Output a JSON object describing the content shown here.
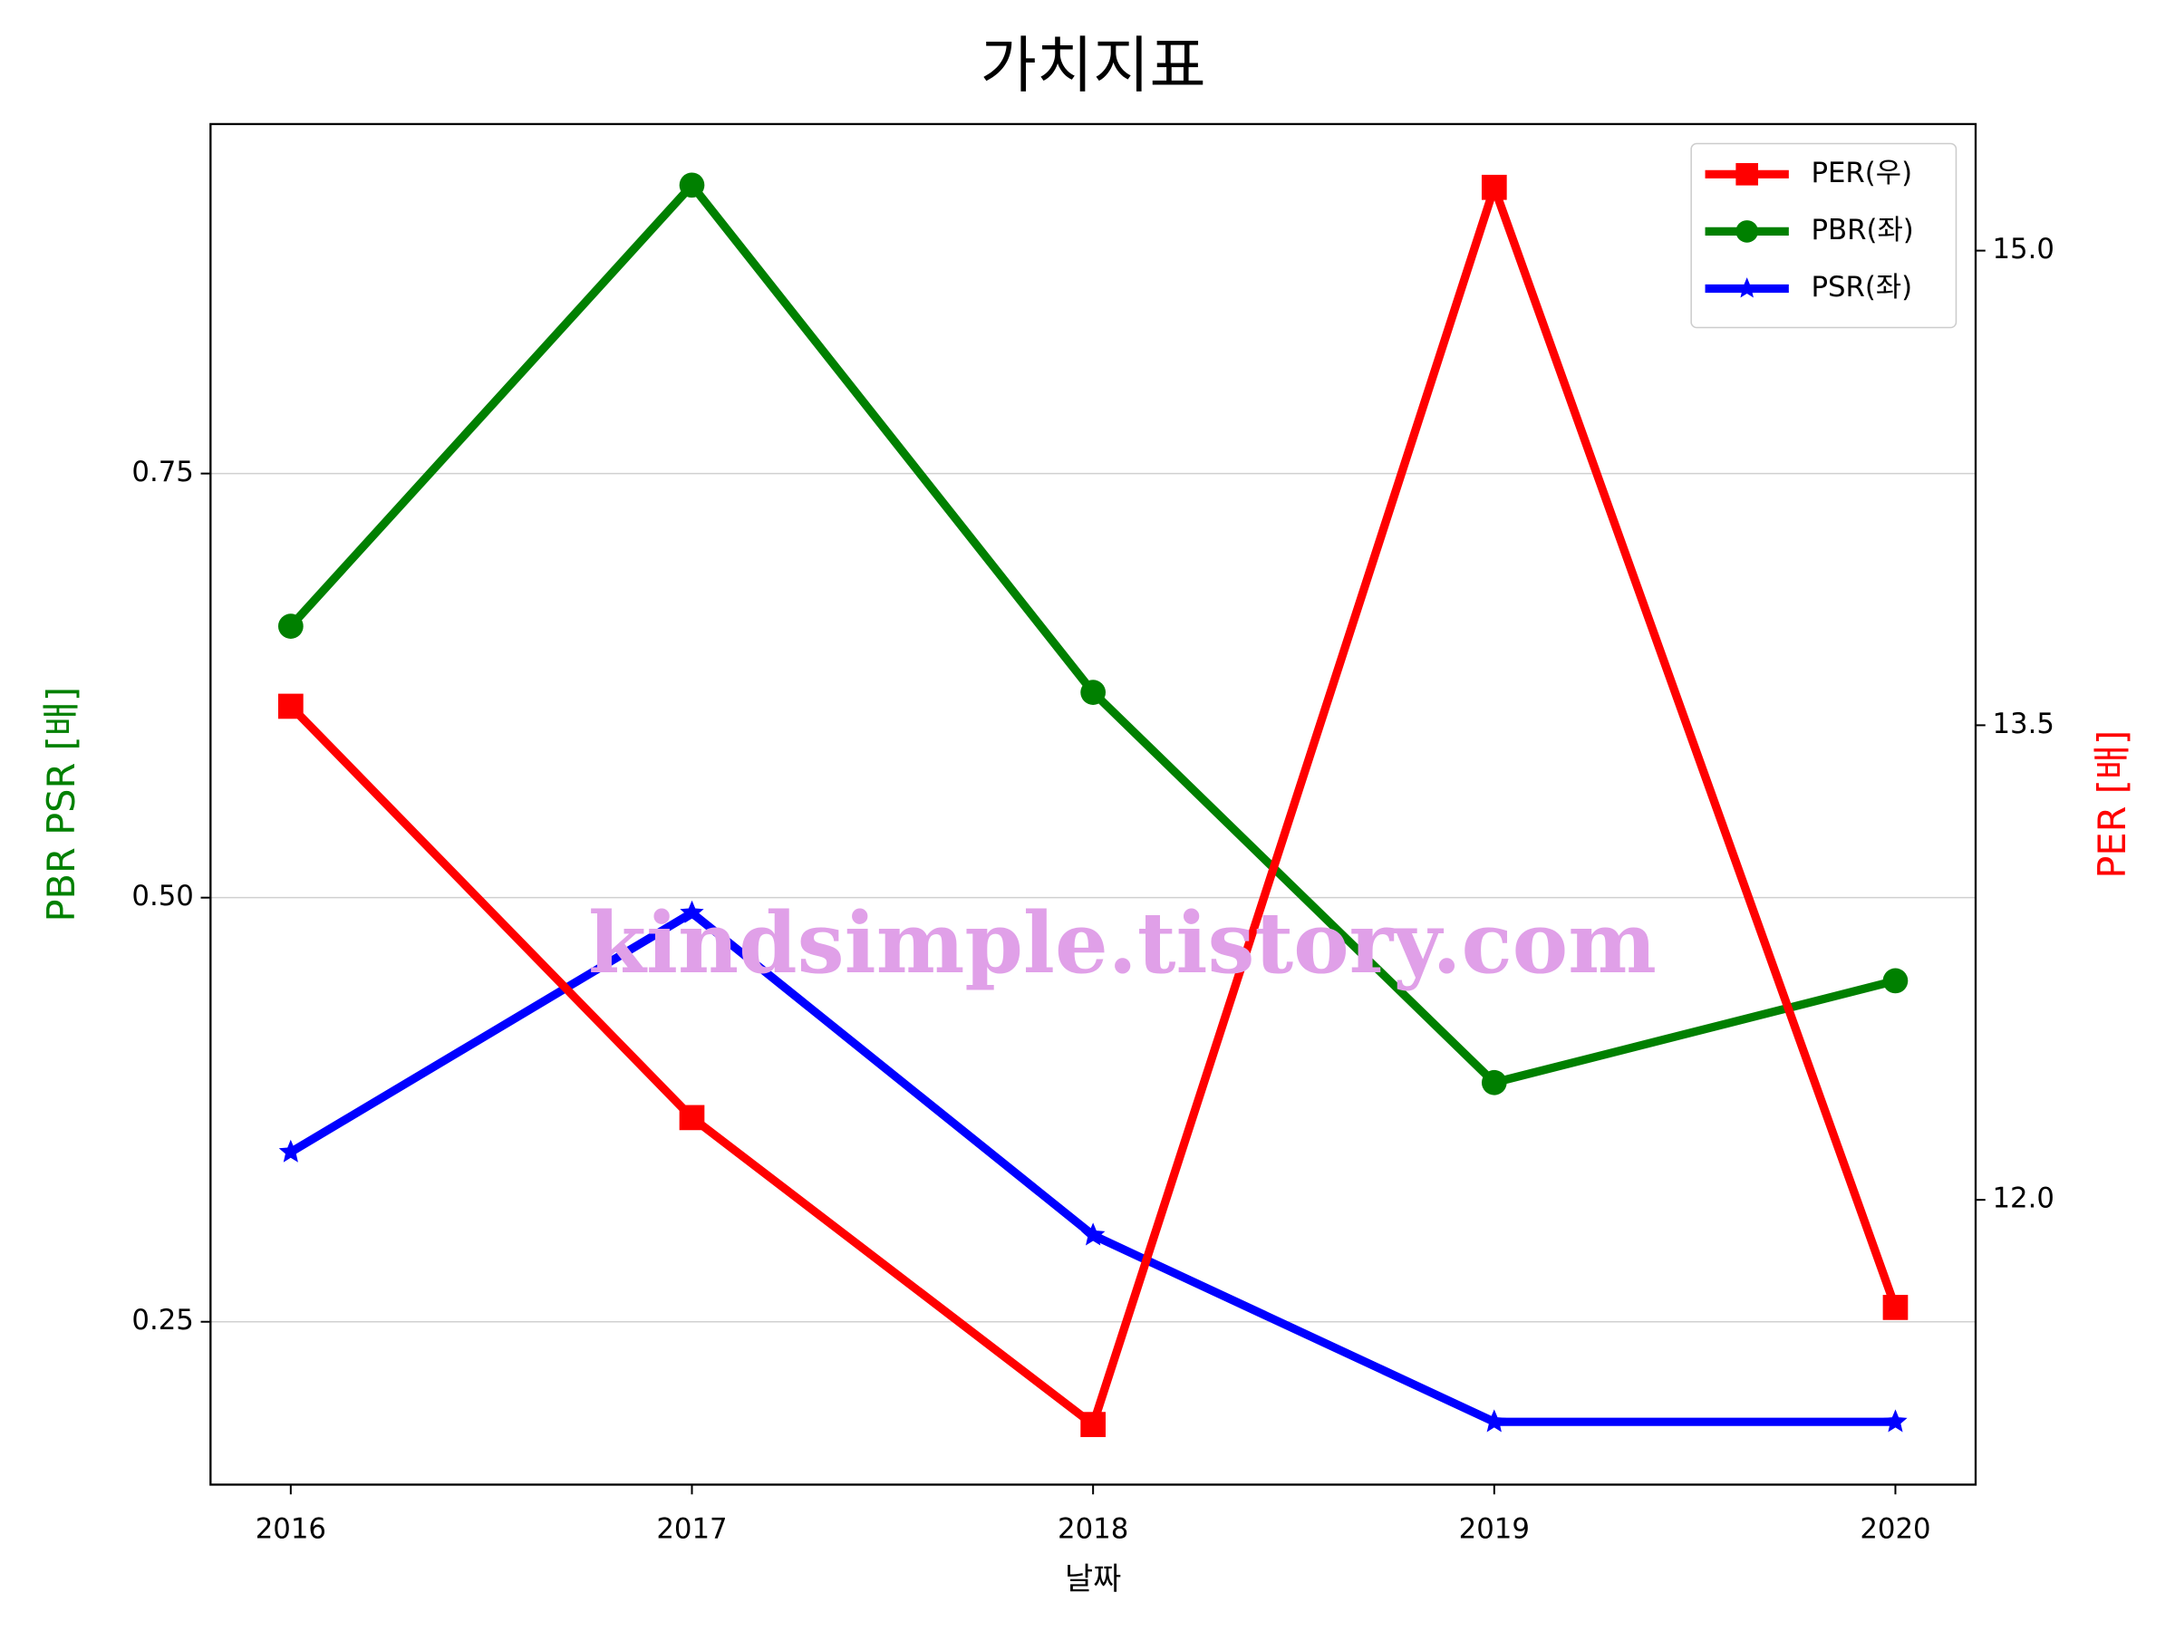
{
  "chart_data": {
    "type": "line",
    "title": "가치지표",
    "x_label": "날짜",
    "y_label": "PBR PSR [배]",
    "y2_label": "PER [배]",
    "annotation": "kindsimple.tistory.com",
    "x": [
      2016,
      2017,
      2018,
      2019,
      2020
    ],
    "xlim": [
      2015.8,
      2020.2
    ],
    "xticks": [
      2016,
      2017,
      2018,
      2019,
      2020
    ],
    "ylim": [
      0.154,
      0.956
    ],
    "yticks": [
      0.25,
      {
        "value": 0.5,
        "label": "0.50"
      },
      0.75
    ],
    "y2lim": [
      11.1,
      15.4
    ],
    "y2ticks": [
      {
        "value": 12,
        "label": "12.0"
      },
      13.5,
      {
        "value": 15,
        "label": "15.0"
      }
    ],
    "grid": true,
    "legend": "upper right",
    "series": [
      {
        "name": "PER(우)",
        "color": "#ff0000",
        "marker": "square",
        "axis": "y2",
        "values": [
          13.56,
          12.26,
          11.29,
          15.2,
          11.66
        ]
      },
      {
        "name": "PBR(좌)",
        "color": "#008000",
        "marker": "circle",
        "values": [
          0.66,
          0.92,
          0.621,
          0.391,
          0.451
        ]
      },
      {
        "name": "PSR(좌)",
        "color": "#0000ff",
        "marker": "star",
        "values": [
          0.35,
          0.491,
          0.301,
          0.191,
          0.191
        ]
      }
    ]
  }
}
